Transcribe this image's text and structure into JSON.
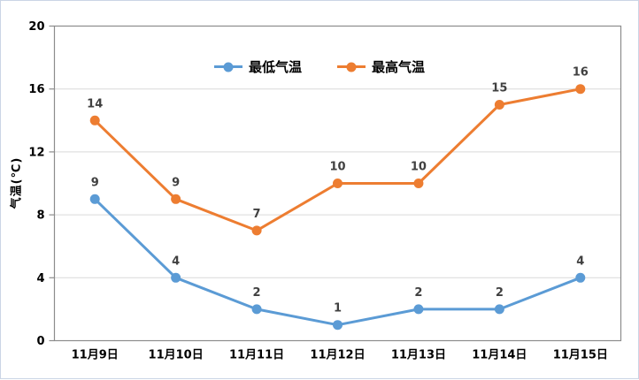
{
  "chart_data": {
    "type": "line",
    "title": "",
    "categories": [
      "11月9日",
      "11月10日",
      "11月11日",
      "11月12日",
      "11月13日",
      "11月14日",
      "11月15日"
    ],
    "series": [
      {
        "name": "最低气温",
        "color": "#5B9BD5",
        "values": [
          9,
          4,
          2,
          1,
          2,
          2,
          4
        ]
      },
      {
        "name": "最高气温",
        "color": "#ED7D31",
        "values": [
          14,
          9,
          7,
          10,
          10,
          15,
          16
        ]
      }
    ],
    "xlabel": "",
    "ylabel": "气温(℃)",
    "ylim": [
      0,
      20
    ],
    "ytick_step": 4,
    "yticks": [
      0,
      4,
      8,
      12,
      16,
      20
    ],
    "grid": true,
    "data_labels": true,
    "legend_position": "top-center",
    "marker": "circle",
    "colors": {
      "gridline": "#D9D9D9",
      "axis": "#8C8C8C",
      "data_label": "#404040",
      "tick_label": "#000000",
      "outer_border": "#CBD5E5",
      "background": "#FFFFFF"
    }
  }
}
